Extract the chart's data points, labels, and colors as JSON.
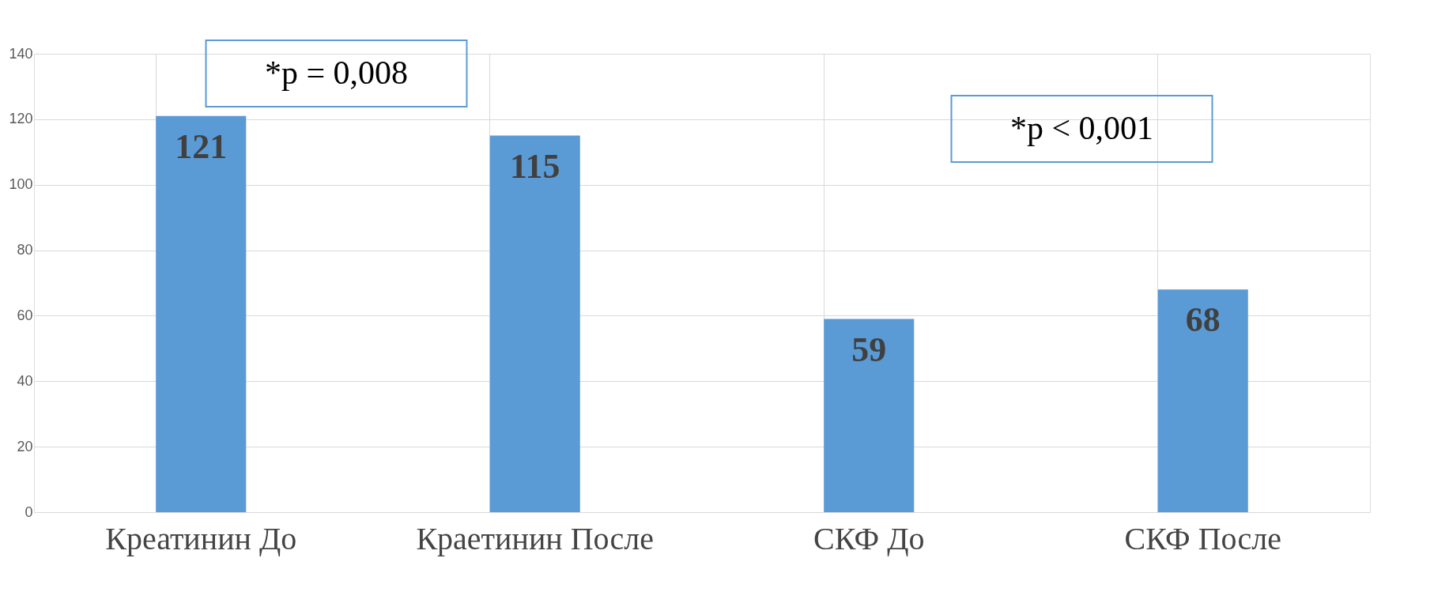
{
  "chart_data": {
    "type": "bar",
    "categories": [
      "Креатинин До",
      "Краетинин После",
      "СКФ До",
      "СКФ После"
    ],
    "values": [
      121,
      115,
      59,
      68
    ],
    "color": "#5b9bd5",
    "ylim": [
      0,
      140
    ],
    "yticks": [
      0,
      20,
      40,
      60,
      80,
      100,
      120,
      140
    ],
    "grid": true,
    "data_labels": true,
    "annotations": [
      "*p = 0,008",
      "*p < 0,001"
    ]
  }
}
